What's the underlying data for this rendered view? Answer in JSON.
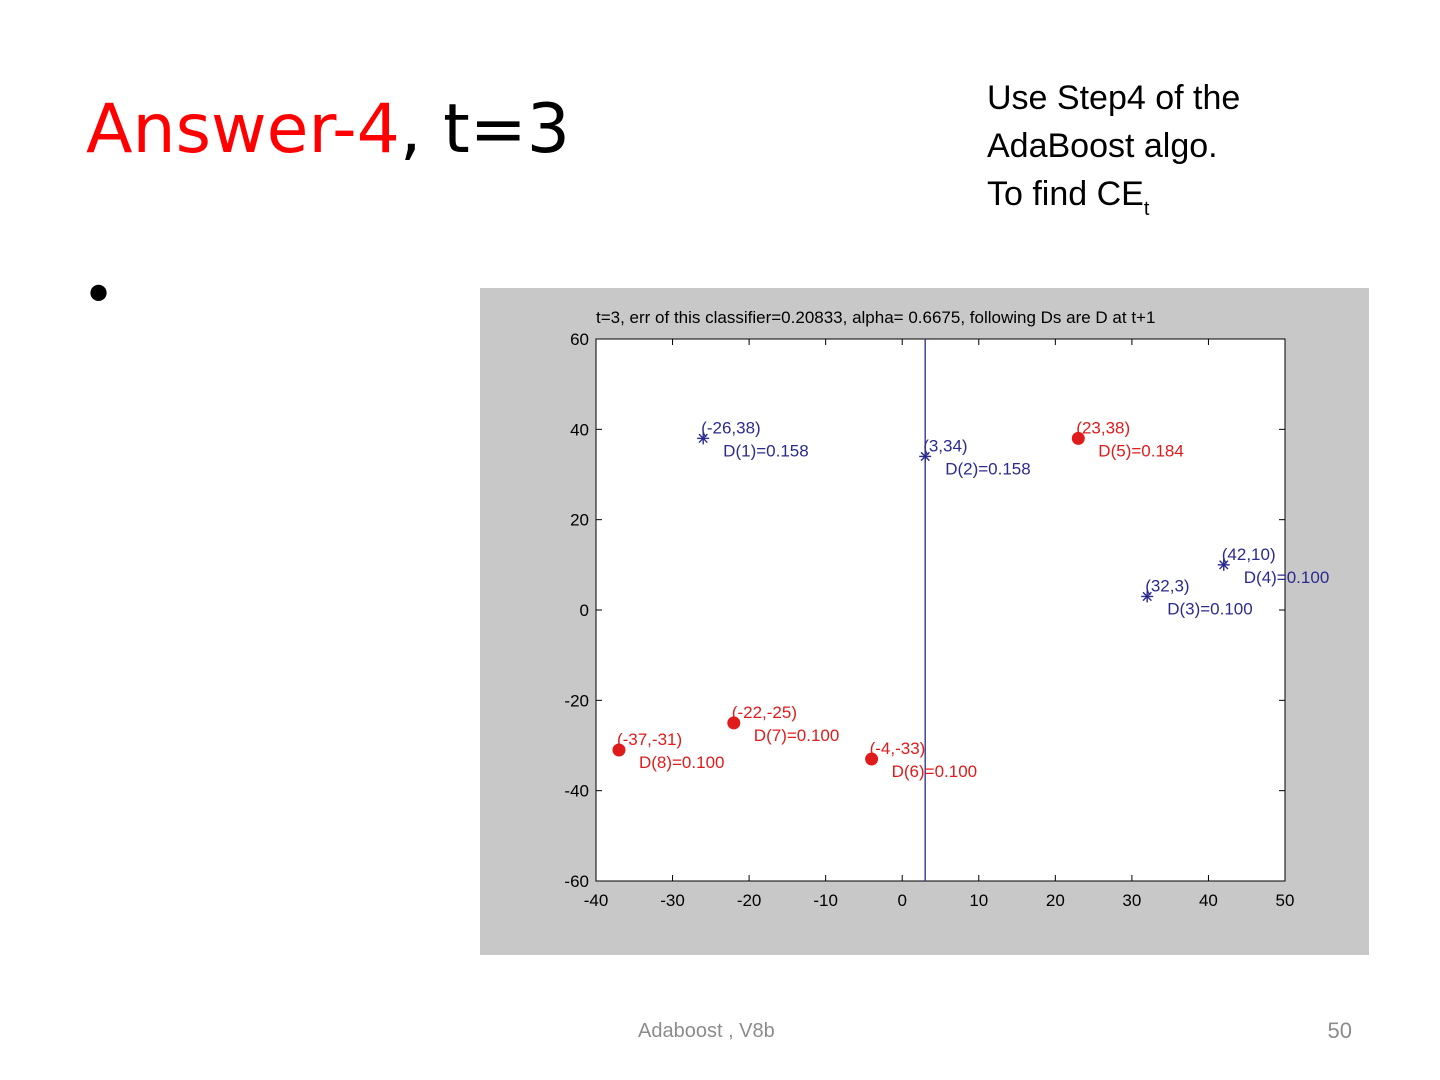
{
  "slide": {
    "title_highlight": "Answer-4",
    "title_rest": ", t=3",
    "title_highlight_color": "#ff0000",
    "note_line1": "Use Step4 of the",
    "note_line2": "AdaBoost algo.",
    "note_line3_prefix": "To find CE",
    "note_line3_sub": "t",
    "bullet": "•",
    "footer": "Adaboost , V8b",
    "page_number": "50"
  },
  "chart_data": {
    "type": "scatter",
    "title": "t=3, err of this classifier=0.20833, alpha=  0.6675, following Ds are D at t+1",
    "xlabel": "",
    "ylabel": "",
    "xlim": [
      -40,
      50
    ],
    "ylim": [
      -60,
      60
    ],
    "xticks": [
      "-40",
      "-30",
      "-20",
      "-10",
      "0",
      "10",
      "20",
      "30",
      "40",
      "50"
    ],
    "yticks": [
      "60",
      "40",
      "20",
      "0",
      "-20",
      "-40",
      "-60"
    ],
    "grid": false,
    "decision_boundary_x": 3,
    "colors": {
      "positive": "#2b2b8f",
      "negative": "#e01b1b",
      "boundary": "#2b2b8f",
      "figure_bg": "#c8c8c8",
      "axes_bg": "#ffffff"
    },
    "series": [
      {
        "class": "positive",
        "marker": "star",
        "points": [
          {
            "x": -26,
            "y": 38,
            "coord_label": "(-26,38)",
            "d_label": "D(1)=0.158"
          },
          {
            "x": 3,
            "y": 34,
            "coord_label": "(3,34)",
            "d_label": "D(2)=0.158"
          },
          {
            "x": 32,
            "y": 3,
            "coord_label": "(32,3)",
            "d_label": "D(3)=0.100"
          },
          {
            "x": 42,
            "y": 10,
            "coord_label": "(42,10)",
            "d_label": "D(4)=0.100"
          }
        ]
      },
      {
        "class": "negative",
        "marker": "dot",
        "points": [
          {
            "x": 23,
            "y": 38,
            "coord_label": "(23,38)",
            "d_label": "D(5)=0.184"
          },
          {
            "x": -4,
            "y": -33,
            "coord_label": "(-4,-33)",
            "d_label": "D(6)=0.100"
          },
          {
            "x": -22,
            "y": -25,
            "coord_label": "(-22,-25)",
            "d_label": "D(7)=0.100"
          },
          {
            "x": -37,
            "y": -31,
            "coord_label": "(-37,-31)",
            "d_label": "D(8)=0.100"
          }
        ]
      }
    ]
  }
}
